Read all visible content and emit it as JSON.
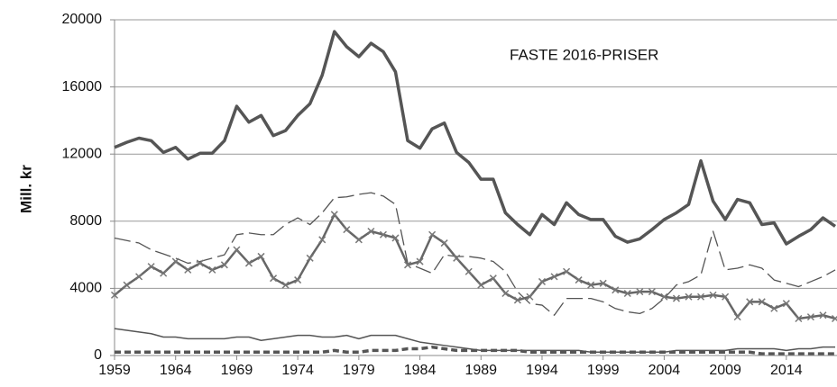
{
  "chart_data": {
    "type": "line",
    "annotation": "FASTE 2016-PRISER",
    "y_label": "Mill. kr",
    "x": [
      1959,
      1960,
      1961,
      1962,
      1963,
      1964,
      1965,
      1966,
      1967,
      1968,
      1969,
      1970,
      1971,
      1972,
      1973,
      1974,
      1975,
      1976,
      1977,
      1978,
      1979,
      1980,
      1981,
      1982,
      1983,
      1984,
      1985,
      1986,
      1987,
      1988,
      1989,
      1990,
      1991,
      1992,
      1993,
      1994,
      1995,
      1996,
      1997,
      1998,
      1999,
      2000,
      2001,
      2002,
      2003,
      2004,
      2005,
      2006,
      2007,
      2008,
      2009,
      2010,
      2011,
      2012,
      2013,
      2014,
      2015,
      2016,
      2017,
      2018
    ],
    "xlim": [
      1959,
      2018
    ],
    "xticks": [
      1959,
      1964,
      1969,
      1974,
      1979,
      1984,
      1989,
      1994,
      1999,
      2004,
      2009,
      2014
    ],
    "ylim": [
      0,
      20000
    ],
    "yticks": [
      0,
      4000,
      8000,
      12000,
      16000,
      20000
    ],
    "grid": true,
    "series": [
      {
        "color": "#555555",
        "dash": "solid",
        "width": 3.5,
        "values": [
          12400,
          12700,
          12950,
          12800,
          12100,
          12400,
          11700,
          12050,
          12050,
          12800,
          14850,
          13900,
          14300,
          13100,
          13400,
          14300,
          15000,
          16700,
          19300,
          18400,
          17800,
          18600,
          18100,
          16900,
          12800,
          12350,
          13500,
          13850,
          12100,
          11500,
          10500,
          10500,
          8500,
          7800,
          7200,
          8400,
          7800,
          9100,
          8400,
          8100,
          8100,
          7100,
          6750,
          6950,
          7500,
          8100,
          8500,
          9000,
          11600,
          9200,
          8100,
          9300,
          9100,
          7800,
          7900,
          6650,
          7100,
          7500,
          8200,
          7700
        ]
      },
      {
        "color": "#555555",
        "dash": "long-dash",
        "width": 1.3,
        "values": [
          7000,
          6850,
          6700,
          6300,
          6050,
          5800,
          5500,
          5600,
          5800,
          6000,
          7200,
          7300,
          7200,
          7200,
          7800,
          8200,
          7800,
          8500,
          9400,
          9450,
          9600,
          9700,
          9500,
          9000,
          5500,
          5200,
          4900,
          6000,
          5900,
          5900,
          5800,
          5600,
          5000,
          3800,
          3100,
          3000,
          2400,
          3400,
          3400,
          3400,
          3200,
          2800,
          2600,
          2500,
          2800,
          3400,
          4200,
          4400,
          4800,
          7400,
          5100,
          5200,
          5400,
          5200,
          4500,
          4300,
          4100,
          4400,
          4700,
          5100
        ]
      },
      {
        "color": "#666666",
        "dash": "solid",
        "width": 2.5,
        "marker": "x",
        "values": [
          3600,
          4200,
          4700,
          5300,
          4900,
          5600,
          5100,
          5500,
          5100,
          5400,
          6300,
          5500,
          5900,
          4600,
          4200,
          4500,
          5800,
          6900,
          8400,
          7500,
          6900,
          7400,
          7200,
          7000,
          5400,
          5600,
          7200,
          6700,
          5800,
          5000,
          4200,
          4600,
          3700,
          3300,
          3500,
          4400,
          4700,
          5000,
          4500,
          4200,
          4300,
          3900,
          3700,
          3800,
          3800,
          3500,
          3400,
          3500,
          3500,
          3600,
          3500,
          2300,
          3200,
          3200,
          2800,
          3100,
          2200,
          2300,
          2400,
          2200
        ]
      },
      {
        "color": "#555555",
        "dash": "solid",
        "width": 1.5,
        "values": [
          1600,
          1500,
          1400,
          1300,
          1100,
          1100,
          1000,
          1000,
          1000,
          1000,
          1100,
          1100,
          900,
          1000,
          1100,
          1200,
          1200,
          1100,
          1100,
          1200,
          1000,
          1200,
          1200,
          1200,
          1000,
          800,
          700,
          600,
          500,
          400,
          300,
          300,
          300,
          300,
          300,
          300,
          300,
          300,
          300,
          200,
          200,
          200,
          200,
          200,
          200,
          200,
          300,
          300,
          300,
          300,
          300,
          400,
          400,
          400,
          400,
          300,
          400,
          400,
          500,
          500
        ]
      },
      {
        "color": "#555555",
        "dash": "dash",
        "width": 3.5,
        "values": [
          200,
          200,
          200,
          200,
          200,
          200,
          200,
          200,
          200,
          200,
          200,
          200,
          200,
          200,
          200,
          200,
          200,
          200,
          300,
          200,
          200,
          300,
          300,
          300,
          400,
          400,
          500,
          400,
          300,
          300,
          300,
          300,
          300,
          300,
          200,
          200,
          200,
          200,
          200,
          200,
          200,
          200,
          200,
          200,
          200,
          200,
          200,
          200,
          200,
          200,
          200,
          200,
          200,
          100,
          100,
          100,
          100,
          100,
          100,
          100
        ]
      }
    ]
  }
}
